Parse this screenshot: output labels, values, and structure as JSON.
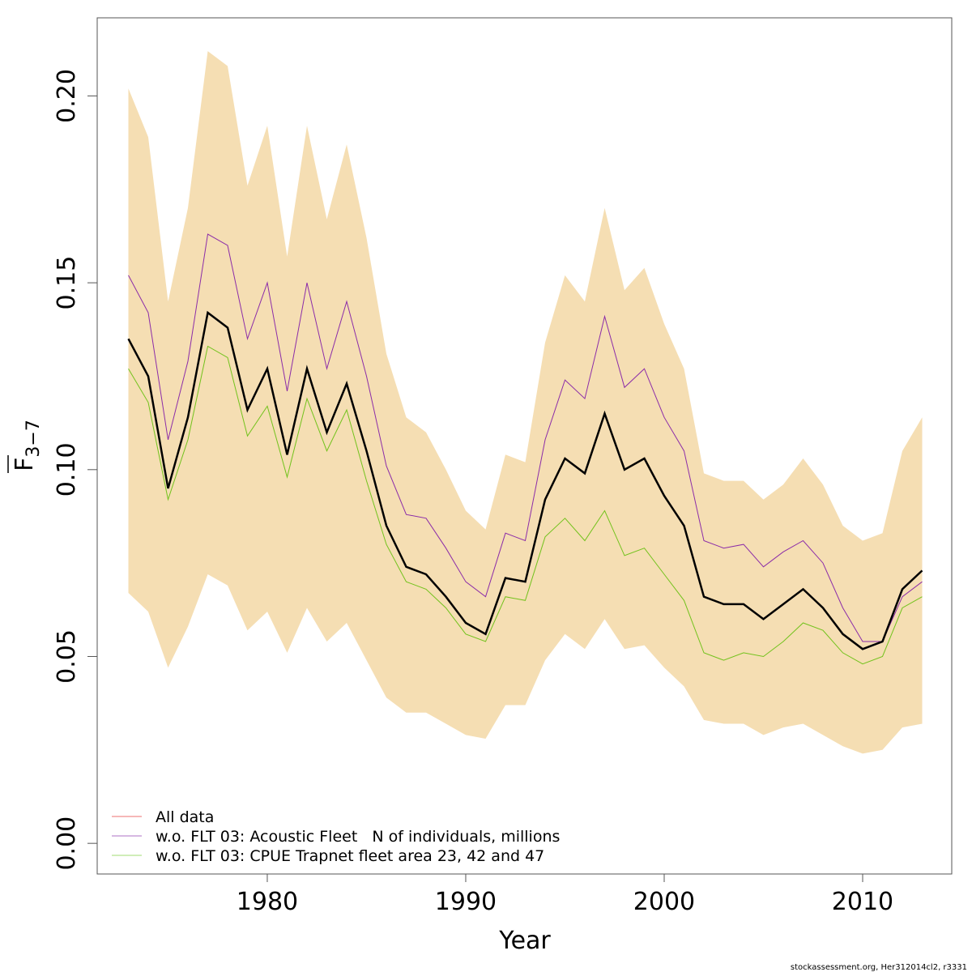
{
  "chart_data": {
    "type": "line",
    "title": "",
    "xlabel": "Year",
    "ylabel_main": "F",
    "ylabel_sub": "3−7",
    "xlim": [
      1971.43,
      2014.49
    ],
    "ylim": [
      -0.0082,
      0.2209
    ],
    "grid": false,
    "x_ticks": [
      1980,
      1990,
      2000,
      2010
    ],
    "x_tick_labels": [
      "1980",
      "1990",
      "2000",
      "2010"
    ],
    "y_ticks": [
      0.0,
      0.05,
      0.1,
      0.15,
      0.2
    ],
    "y_tick_labels": [
      "0.00",
      "0.05",
      "0.10",
      "0.15",
      "0.20"
    ],
    "x": [
      1973,
      1974,
      1975,
      1976,
      1977,
      1978,
      1979,
      1980,
      1981,
      1982,
      1983,
      1984,
      1985,
      1986,
      1987,
      1988,
      1989,
      1990,
      1991,
      1992,
      1993,
      1994,
      1995,
      1996,
      1997,
      1998,
      1999,
      2000,
      2001,
      2002,
      2003,
      2004,
      2005,
      2006,
      2007,
      2008,
      2009,
      2010,
      2011,
      2012,
      2013
    ],
    "confidence_band": {
      "color": "#f5deb3",
      "upper": [
        0.202,
        0.189,
        0.145,
        0.17,
        0.212,
        0.208,
        0.176,
        0.192,
        0.157,
        0.192,
        0.167,
        0.187,
        0.162,
        0.131,
        0.114,
        0.11,
        0.1,
        0.089,
        0.084,
        0.104,
        0.102,
        0.134,
        0.152,
        0.145,
        0.17,
        0.148,
        0.154,
        0.139,
        0.127,
        0.099,
        0.097,
        0.097,
        0.092,
        0.096,
        0.103,
        0.096,
        0.085,
        0.081,
        0.083,
        0.105,
        0.114
      ],
      "lower": [
        0.067,
        0.062,
        0.047,
        0.058,
        0.072,
        0.069,
        0.057,
        0.062,
        0.051,
        0.063,
        0.054,
        0.059,
        0.049,
        0.039,
        0.035,
        0.035,
        0.032,
        0.029,
        0.028,
        0.037,
        0.037,
        0.049,
        0.056,
        0.052,
        0.06,
        0.052,
        0.053,
        0.047,
        0.042,
        0.033,
        0.032,
        0.032,
        0.029,
        0.031,
        0.032,
        0.029,
        0.026,
        0.024,
        0.025,
        0.031,
        0.032
      ]
    },
    "series": [
      {
        "name": "w.o. FLT 03: Acoustic Fleet   N of individuals, millions",
        "color": "#8b2ca8",
        "legend_color": "#c8a0d8",
        "line_width": 1,
        "values": [
          0.152,
          0.142,
          0.108,
          0.129,
          0.163,
          0.16,
          0.135,
          0.15,
          0.121,
          0.15,
          0.127,
          0.145,
          0.125,
          0.101,
          0.088,
          0.087,
          0.079,
          0.07,
          0.066,
          0.083,
          0.081,
          0.108,
          0.124,
          0.119,
          0.141,
          0.122,
          0.127,
          0.114,
          0.105,
          0.081,
          0.079,
          0.08,
          0.074,
          0.078,
          0.081,
          0.075,
          0.063,
          0.054,
          0.054,
          0.066,
          0.07
        ]
      },
      {
        "name": "w.o. FLT 03: CPUE Trapnet fleet area 23, 42 and 47",
        "color": "#72c21c",
        "legend_color": "#c0e8a0",
        "line_width": 1,
        "values": [
          0.127,
          0.118,
          0.092,
          0.108,
          0.133,
          0.13,
          0.109,
          0.117,
          0.098,
          0.119,
          0.105,
          0.116,
          0.097,
          0.08,
          0.07,
          0.068,
          0.063,
          0.056,
          0.054,
          0.066,
          0.065,
          0.082,
          0.087,
          0.081,
          0.089,
          0.077,
          0.079,
          0.072,
          0.065,
          0.051,
          0.049,
          0.051,
          0.05,
          0.054,
          0.059,
          0.057,
          0.051,
          0.048,
          0.05,
          0.063,
          0.066
        ]
      },
      {
        "name": "All data",
        "color": "#000000",
        "legend_color": "#f4a0a0",
        "line_width": 2.5,
        "values": [
          0.135,
          0.125,
          0.095,
          0.114,
          0.142,
          0.138,
          0.116,
          0.127,
          0.104,
          0.127,
          0.11,
          0.123,
          0.105,
          0.085,
          0.074,
          0.072,
          0.066,
          0.059,
          0.056,
          0.071,
          0.07,
          0.092,
          0.103,
          0.099,
          0.115,
          0.1,
          0.103,
          0.093,
          0.085,
          0.066,
          0.064,
          0.064,
          0.06,
          0.064,
          0.068,
          0.063,
          0.056,
          0.052,
          0.054,
          0.068,
          0.073
        ]
      }
    ],
    "legend": {
      "position": "bottom-left",
      "entries": [
        {
          "label": "All data",
          "color": "#f4a0a0"
        },
        {
          "label": "w.o. FLT 03: Acoustic Fleet   N of individuals, millions",
          "color": "#c8a0d8"
        },
        {
          "label": "w.o. FLT 03: CPUE Trapnet fleet area 23, 42 and 47",
          "color": "#c0e8a0"
        }
      ]
    }
  },
  "footer": "stockassessment.org, Her312014cl2, r3331"
}
